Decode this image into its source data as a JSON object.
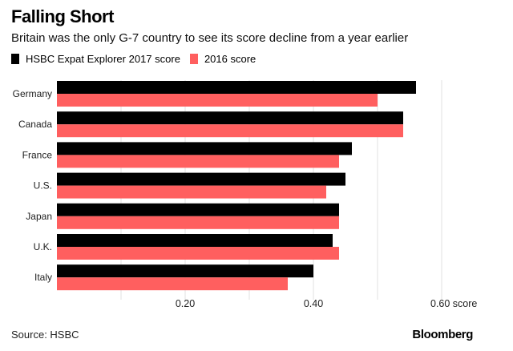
{
  "header": {
    "title": "Falling Short",
    "subtitle": "Britain was the only G-7 country to see its score decline from a year earlier"
  },
  "legend": [
    {
      "label": "HSBC Expat Explorer 2017 score",
      "color": "#000000"
    },
    {
      "label": "2016 score",
      "color": "#ff5f5f"
    }
  ],
  "footer": {
    "source": "Source: HSBC",
    "brand": "Bloomberg"
  },
  "chart_data": {
    "type": "bar",
    "orientation": "horizontal",
    "title": "Falling Short",
    "subtitle": "Britain was the only G-7 country to see its score decline from a year earlier",
    "xlabel": "score",
    "ylabel": "",
    "xlim": [
      0,
      0.7
    ],
    "xticks": [
      0.2,
      0.4,
      0.6
    ],
    "xtick_labels": [
      "0.20",
      "0.40",
      "0.60 score"
    ],
    "gridlines": [
      0.1,
      0.2,
      0.3,
      0.4,
      0.5,
      0.6
    ],
    "grid": true,
    "legend_position": "top-left",
    "categories": [
      "Germany",
      "Canada",
      "France",
      "U.S.",
      "Japan",
      "U.K.",
      "Italy"
    ],
    "series": [
      {
        "name": "HSBC Expat Explorer 2017 score",
        "color": "#000000",
        "values": [
          0.56,
          0.54,
          0.46,
          0.45,
          0.44,
          0.43,
          0.4
        ]
      },
      {
        "name": "2016 score",
        "color": "#ff5f5f",
        "values": [
          0.5,
          0.54,
          0.44,
          0.42,
          0.44,
          0.44,
          0.36
        ]
      }
    ]
  }
}
